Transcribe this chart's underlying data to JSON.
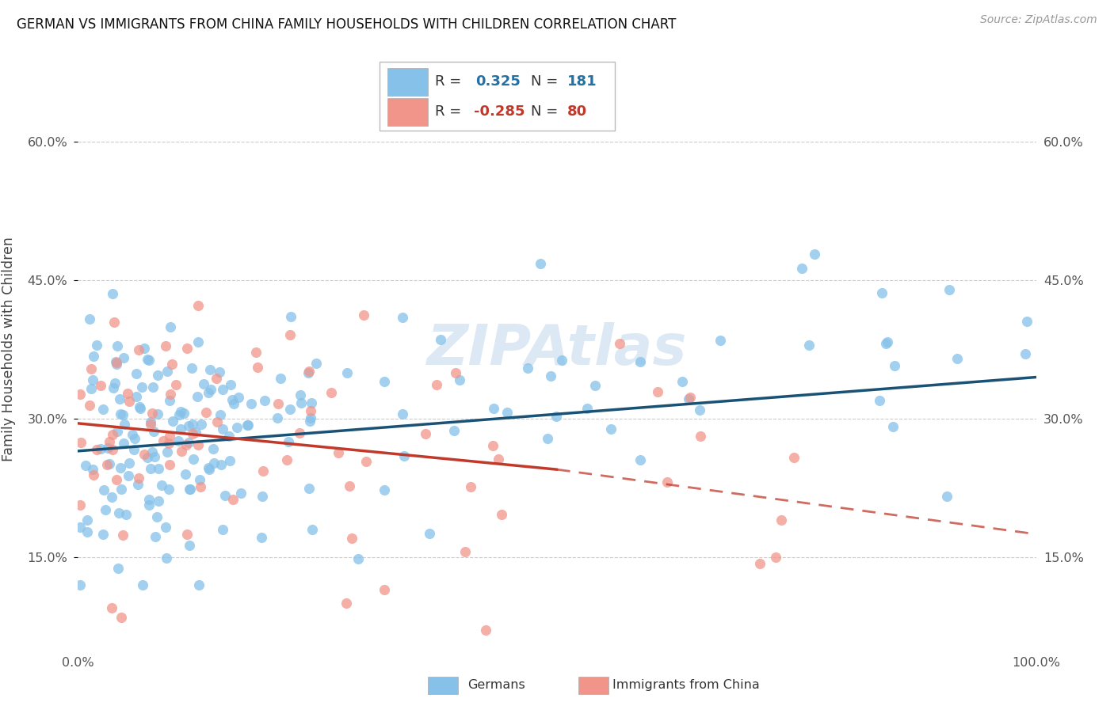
{
  "title": "GERMAN VS IMMIGRANTS FROM CHINA FAMILY HOUSEHOLDS WITH CHILDREN CORRELATION CHART",
  "source": "Source: ZipAtlas.com",
  "ylabel": "Family Households with Children",
  "xlim": [
    0.0,
    1.0
  ],
  "ylim": [
    0.05,
    0.7
  ],
  "yticks": [
    0.15,
    0.3,
    0.45,
    0.6
  ],
  "ytick_labels": [
    "15.0%",
    "30.0%",
    "45.0%",
    "60.0%"
  ],
  "xticks": [
    0.0,
    0.2,
    0.4,
    0.6,
    0.8,
    1.0
  ],
  "xtick_labels": [
    "0.0%",
    "",
    "",
    "",
    "",
    "100.0%"
  ],
  "german_R": 0.325,
  "german_N": 181,
  "china_R": -0.285,
  "china_N": 80,
  "german_color": "#85c1e9",
  "china_color": "#f1948a",
  "german_line_color": "#1a5276",
  "china_line_color": "#c0392b",
  "background_color": "#ffffff",
  "grid_color": "#cccccc",
  "watermark": "ZIPAtlas",
  "legend_R_color_blue": "#2471a3",
  "legend_R_color_pink": "#c0392b",
  "german_line_start_y": 0.265,
  "german_line_end_y": 0.345,
  "china_line_start_y": 0.295,
  "china_line_solid_end_x": 0.5,
  "china_line_solid_end_y": 0.245,
  "china_line_dash_end_x": 1.0,
  "china_line_dash_end_y": 0.175
}
